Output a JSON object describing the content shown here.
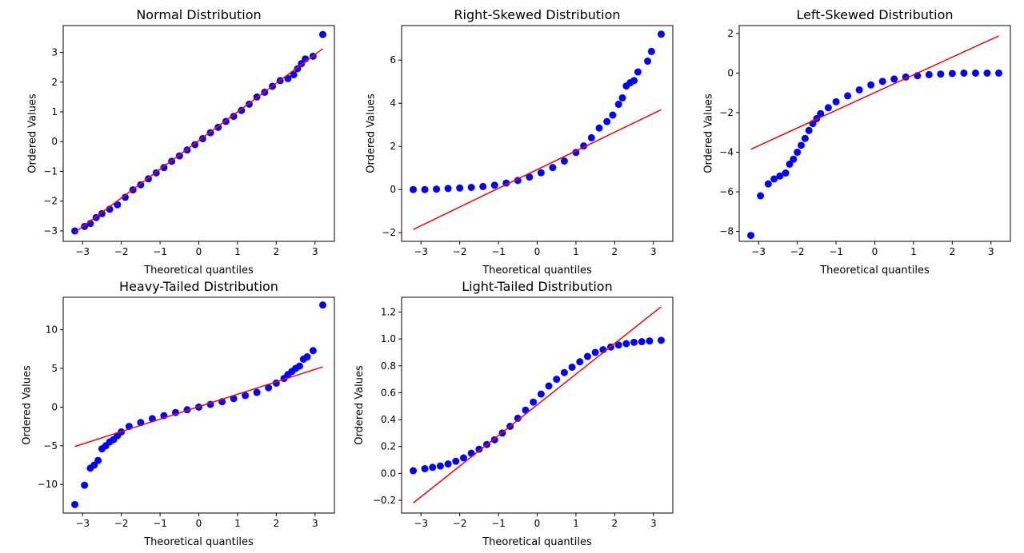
{
  "colors": {
    "points": "#0000ff",
    "fit_line": "#ff0000",
    "axes": "#000000",
    "background": "#ffffff"
  },
  "chart_data": [
    {
      "type": "scatter",
      "title": "Normal Distribution",
      "xlabel": "Theoretical quantiles",
      "ylabel": "Ordered Values",
      "xlim": [
        -3.5,
        3.5
      ],
      "ylim": [
        -3.35,
        3.9
      ],
      "xticks": [
        -3,
        -2,
        -1,
        0,
        1,
        2,
        3
      ],
      "xtick_labels": [
        "−3",
        "−2",
        "−1",
        "0",
        "1",
        "2",
        "3"
      ],
      "yticks": [
        -3,
        -2,
        -1,
        0,
        1,
        2,
        3
      ],
      "ytick_labels": [
        "−3",
        "−2",
        "−1",
        "0",
        "1",
        "2",
        "3"
      ],
      "grid": false,
      "series": [
        {
          "kind": "points",
          "x": [
            -3.2,
            -2.95,
            -2.8,
            -2.65,
            -2.5,
            -2.3,
            -2.1,
            -1.9,
            -1.7,
            -1.5,
            -1.3,
            -1.1,
            -0.9,
            -0.7,
            -0.5,
            -0.3,
            -0.1,
            0.1,
            0.3,
            0.5,
            0.7,
            0.9,
            1.1,
            1.3,
            1.5,
            1.7,
            1.9,
            2.1,
            2.3,
            2.45,
            2.55,
            2.65,
            2.75,
            2.95,
            3.2
          ],
          "y": [
            -3.0,
            -2.85,
            -2.75,
            -2.55,
            -2.42,
            -2.27,
            -2.12,
            -1.87,
            -1.62,
            -1.45,
            -1.25,
            -1.05,
            -0.87,
            -0.66,
            -0.48,
            -0.28,
            -0.1,
            0.1,
            0.3,
            0.48,
            0.68,
            0.85,
            1.05,
            1.26,
            1.5,
            1.66,
            1.86,
            2.05,
            2.12,
            2.25,
            2.45,
            2.62,
            2.78,
            2.87,
            3.6
          ]
        },
        {
          "kind": "line",
          "x": [
            -3.2,
            3.2
          ],
          "y": [
            -3.05,
            3.12
          ]
        }
      ]
    },
    {
      "type": "scatter",
      "title": "Right-Skewed Distribution",
      "xlabel": "Theoretical quantiles",
      "ylabel": "Ordered Values",
      "xlim": [
        -3.5,
        3.5
      ],
      "ylim": [
        -2.4,
        7.6
      ],
      "xticks": [
        -3,
        -2,
        -1,
        0,
        1,
        2,
        3
      ],
      "xtick_labels": [
        "−3",
        "−2",
        "−1",
        "0",
        "1",
        "2",
        "3"
      ],
      "yticks": [
        -2,
        0,
        2,
        4,
        6
      ],
      "ytick_labels": [
        "−2",
        "0",
        "2",
        "4",
        "6"
      ],
      "grid": false,
      "series": [
        {
          "kind": "points",
          "x": [
            -3.2,
            -2.9,
            -2.6,
            -2.3,
            -2.0,
            -1.7,
            -1.4,
            -1.1,
            -0.8,
            -0.5,
            -0.2,
            0.1,
            0.4,
            0.7,
            1.0,
            1.2,
            1.4,
            1.6,
            1.8,
            1.95,
            2.1,
            2.2,
            2.3,
            2.4,
            2.5,
            2.6,
            2.85,
            2.95,
            3.2
          ],
          "y": [
            0.0,
            0.0,
            0.02,
            0.05,
            0.07,
            0.1,
            0.14,
            0.2,
            0.3,
            0.42,
            0.58,
            0.78,
            1.02,
            1.32,
            1.72,
            2.02,
            2.4,
            2.85,
            3.15,
            3.45,
            3.95,
            4.25,
            4.8,
            4.95,
            5.05,
            5.45,
            5.95,
            6.4,
            7.2
          ]
        },
        {
          "kind": "line",
          "x": [
            -3.2,
            3.2
          ],
          "y": [
            -1.85,
            3.7
          ]
        }
      ]
    },
    {
      "type": "scatter",
      "title": "Left-Skewed Distribution",
      "xlabel": "Theoretical quantiles",
      "ylabel": "Ordered Values",
      "xlim": [
        -3.5,
        3.5
      ],
      "ylim": [
        -8.5,
        2.4
      ],
      "xticks": [
        -3,
        -2,
        -1,
        0,
        1,
        2,
        3
      ],
      "xtick_labels": [
        "−3",
        "−2",
        "−1",
        "0",
        "1",
        "2",
        "3"
      ],
      "yticks": [
        -8,
        -6,
        -4,
        -2,
        0,
        2
      ],
      "ytick_labels": [
        "−8",
        "−6",
        "−4",
        "−2",
        "0",
        "2"
      ],
      "grid": false,
      "series": [
        {
          "kind": "points",
          "x": [
            -3.2,
            -2.95,
            -2.75,
            -2.6,
            -2.45,
            -2.3,
            -2.2,
            -2.1,
            -2.0,
            -1.9,
            -1.8,
            -1.7,
            -1.6,
            -1.5,
            -1.4,
            -1.2,
            -1.0,
            -0.7,
            -0.4,
            -0.1,
            0.2,
            0.5,
            0.8,
            1.1,
            1.4,
            1.7,
            2.0,
            2.3,
            2.6,
            2.9,
            3.2
          ],
          "y": [
            -8.2,
            -6.2,
            -5.6,
            -5.35,
            -5.2,
            -5.05,
            -4.6,
            -4.35,
            -4.0,
            -3.65,
            -3.3,
            -2.9,
            -2.55,
            -2.3,
            -2.05,
            -1.75,
            -1.45,
            -1.15,
            -0.85,
            -0.6,
            -0.42,
            -0.3,
            -0.2,
            -0.13,
            -0.08,
            -0.05,
            -0.02,
            0.0,
            0.0,
            0.0,
            0.0
          ]
        },
        {
          "kind": "line",
          "x": [
            -3.2,
            3.2
          ],
          "y": [
            -3.85,
            1.88
          ]
        }
      ]
    },
    {
      "type": "scatter",
      "title": "Heavy-Tailed Distribution",
      "xlabel": "Theoretical quantiles",
      "ylabel": "Ordered Values",
      "xlim": [
        -3.5,
        3.5
      ],
      "ylim": [
        -13.7,
        14.2
      ],
      "xticks": [
        -3,
        -2,
        -1,
        0,
        1,
        2,
        3
      ],
      "xtick_labels": [
        "−3",
        "−2",
        "−1",
        "0",
        "1",
        "2",
        "3"
      ],
      "yticks": [
        -10,
        -5,
        0,
        5,
        10
      ],
      "ytick_labels": [
        "−10",
        "−5",
        "0",
        "5",
        "10"
      ],
      "grid": false,
      "series": [
        {
          "kind": "points",
          "x": [
            -3.2,
            -2.95,
            -2.8,
            -2.7,
            -2.6,
            -2.5,
            -2.4,
            -2.3,
            -2.2,
            -2.1,
            -2.0,
            -1.8,
            -1.5,
            -1.2,
            -0.9,
            -0.6,
            -0.3,
            0.0,
            0.3,
            0.6,
            0.9,
            1.2,
            1.5,
            1.8,
            2.0,
            2.2,
            2.3,
            2.4,
            2.5,
            2.6,
            2.7,
            2.8,
            2.95,
            3.2
          ],
          "y": [
            -12.6,
            -10.1,
            -7.9,
            -7.5,
            -6.9,
            -5.4,
            -5.0,
            -4.5,
            -4.2,
            -3.7,
            -3.2,
            -2.5,
            -2.0,
            -1.5,
            -1.1,
            -0.7,
            -0.35,
            0.0,
            0.35,
            0.7,
            1.1,
            1.5,
            1.9,
            2.5,
            3.1,
            3.7,
            4.2,
            4.6,
            5.0,
            5.3,
            6.2,
            6.5,
            7.3,
            13.2
          ]
        },
        {
          "kind": "line",
          "x": [
            -3.2,
            3.2
          ],
          "y": [
            -5.1,
            5.2
          ]
        }
      ]
    },
    {
      "type": "scatter",
      "title": "Light-Tailed Distribution",
      "xlabel": "Theoretical quantiles",
      "ylabel": "Ordered Values",
      "xlim": [
        -3.5,
        3.5
      ],
      "ylim": [
        -0.295,
        1.31
      ],
      "xticks": [
        -3,
        -2,
        -1,
        0,
        1,
        2,
        3
      ],
      "xtick_labels": [
        "−3",
        "−2",
        "−1",
        "0",
        "1",
        "2",
        "3"
      ],
      "yticks": [
        -0.2,
        0.0,
        0.2,
        0.4,
        0.6,
        0.8,
        1.0,
        1.2
      ],
      "ytick_labels": [
        "−0.2",
        "0.0",
        "0.2",
        "0.4",
        "0.6",
        "0.8",
        "1.0",
        "1.2"
      ],
      "grid": false,
      "series": [
        {
          "kind": "points",
          "x": [
            -3.2,
            -2.9,
            -2.7,
            -2.5,
            -2.3,
            -2.1,
            -1.9,
            -1.7,
            -1.5,
            -1.3,
            -1.1,
            -0.9,
            -0.7,
            -0.5,
            -0.3,
            -0.1,
            0.1,
            0.3,
            0.5,
            0.7,
            0.9,
            1.1,
            1.3,
            1.5,
            1.7,
            1.9,
            2.1,
            2.3,
            2.5,
            2.7,
            2.9,
            3.2
          ],
          "y": [
            0.02,
            0.035,
            0.045,
            0.055,
            0.07,
            0.09,
            0.115,
            0.15,
            0.18,
            0.215,
            0.25,
            0.3,
            0.35,
            0.41,
            0.47,
            0.53,
            0.59,
            0.65,
            0.7,
            0.75,
            0.79,
            0.83,
            0.87,
            0.9,
            0.92,
            0.94,
            0.955,
            0.965,
            0.975,
            0.98,
            0.985,
            0.99
          ]
        },
        {
          "kind": "line",
          "x": [
            -3.2,
            3.2
          ],
          "y": [
            -0.22,
            1.24
          ]
        }
      ]
    }
  ]
}
